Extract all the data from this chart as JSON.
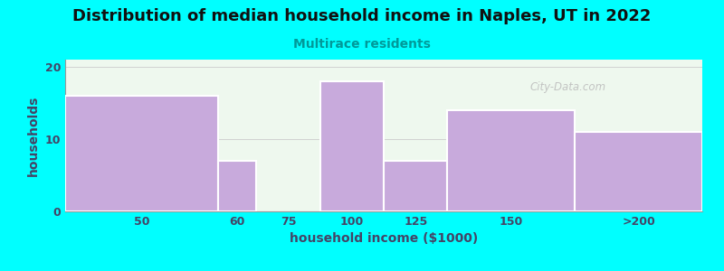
{
  "title": "Distribution of median household income in Naples, UT in 2022",
  "subtitle": "Multirace residents",
  "xlabel": "household income ($1000)",
  "ylabel": "households",
  "background_color": "#00FFFF",
  "plot_bg_color": "#EEF8EE",
  "bar_color": "#C8AADC",
  "bar_edge_color": "#FFFFFF",
  "title_color": "#111111",
  "subtitle_color": "#009999",
  "axis_label_color": "#444466",
  "tick_label_color": "#444466",
  "watermark": "City-Data.com",
  "left_edges": [
    0,
    60,
    75,
    100,
    125,
    150,
    200
  ],
  "right_edges": [
    60,
    75,
    100,
    125,
    150,
    200,
    250
  ],
  "tick_labels": [
    "50",
    "60",
    "75",
    "100",
    "125",
    "150",
    ">200"
  ],
  "tick_positions": [
    30,
    67.5,
    87.5,
    112.5,
    137.5,
    175,
    225
  ],
  "bar_heights": [
    16,
    7,
    0,
    18,
    7,
    14,
    11
  ],
  "ylim": [
    0,
    21
  ],
  "yticks": [
    0,
    10,
    20
  ],
  "xlim": [
    0,
    250
  ],
  "figsize": [
    8.0,
    3.0
  ],
  "dpi": 100
}
